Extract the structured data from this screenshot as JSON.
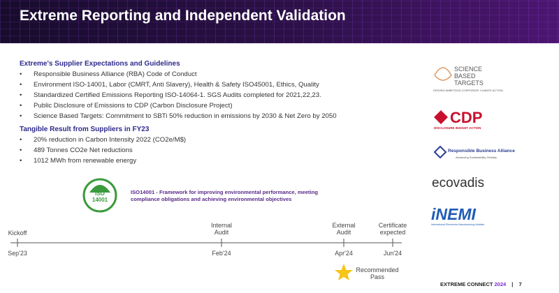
{
  "header": {
    "title": "Extreme Reporting and Independent Validation"
  },
  "sections": [
    {
      "heading": "Extreme's Supplier Expectations and Guidelines",
      "items": [
        "Responsible Business Alliance (RBA) Code of Conduct",
        "Environment ISO-14001, Labor (CMRT, Anti Slavery), Health & Safety ISO45001, Ethics, Quality",
        "Standardized Certified Emissions Reporting ISO-14064-1. SGS Audits completed for 2021,22,23.",
        "Public Disclosure of Emissions to CDP (Carbon Disclosure Project)",
        "Science Based Targets: Commitment to SBTi 50% reduction in emissions by 2030 & Net Zero by 2050"
      ]
    },
    {
      "heading": "Tangible Result from Suppliers in FY23",
      "items": [
        "20% reduction in Carbon Intensity 2022 (CO2e/M$)",
        "489 Tonnes CO2e Net reductions",
        "1012 MWh from renewable energy"
      ]
    }
  ],
  "iso": {
    "badge": "ISO 14001",
    "text": "ISO14001 - Framework for improving environmental performance, meeting compliance obligations and achieving environmental objectives"
  },
  "timeline": [
    {
      "label": "Kickoff",
      "date": "Sep'23"
    },
    {
      "label": "Internal Audit",
      "date": "Feb'24"
    },
    {
      "label": "External Audit",
      "date": "Apr'24"
    },
    {
      "label": "Certificate expected",
      "date": "Jun'24"
    }
  ],
  "star_note": "Recommended Pass",
  "logos": [
    {
      "name": "SCIENCE BASED TARGETS",
      "tagline": "DRIVING AMBITIOUS CORPORATE CLIMATE ACTION"
    },
    {
      "name": "CDP",
      "tagline": "DISCLOSURE INSIGHT ACTION"
    },
    {
      "name": "Responsible Business Alliance",
      "tagline": "Advancing Sustainability Globally"
    },
    {
      "name": "ecovadis"
    },
    {
      "name": "iNEMI",
      "tagline": "International Electronics Manufacturing Initiative"
    }
  ],
  "footer": {
    "event": "EXTREME CONNECT",
    "year": "2024",
    "page": "7"
  }
}
